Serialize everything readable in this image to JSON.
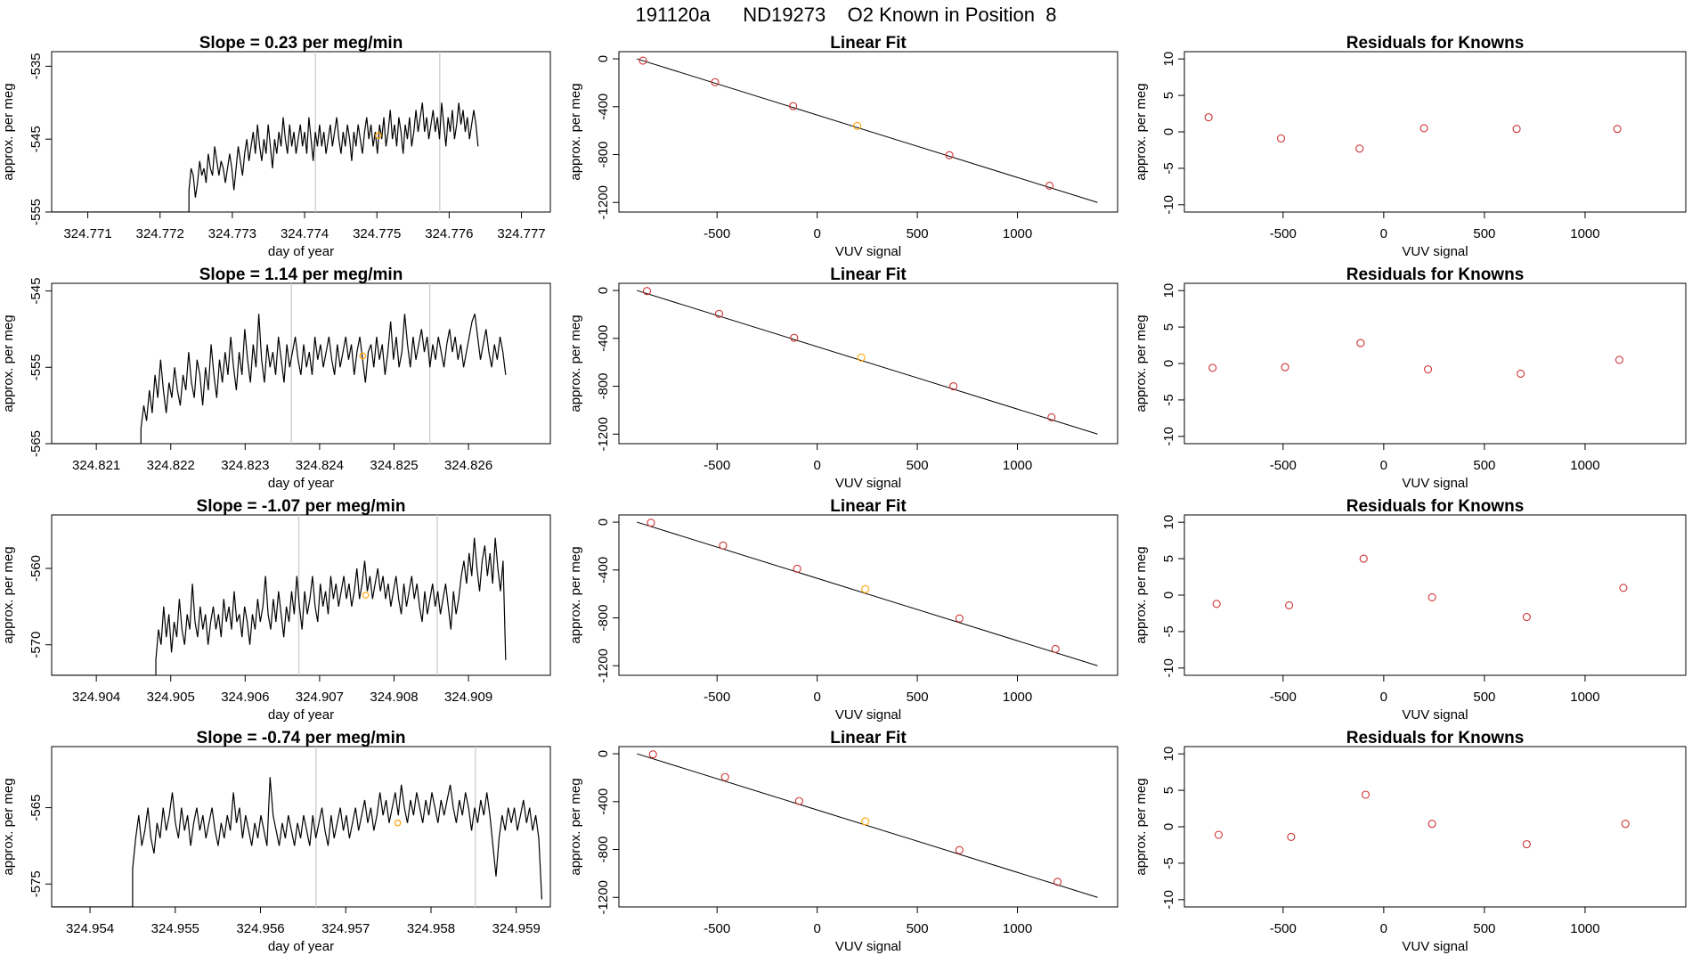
{
  "page_title": "191120a      ND19273    O2 Known in Position  8",
  "colors": {
    "trace": "#000000",
    "fit_point": "#cd3333",
    "reference_point": "#ffa500",
    "marker_line": "#cccccc",
    "fit_line": "#000000"
  },
  "chart_data": [
    {
      "type": "line",
      "title": "Slope =  0.23  per meg/min",
      "xlabel": "day of year",
      "ylabel": "approx. per meg",
      "xlim": [
        324.7705,
        324.7774
      ],
      "ylim": [
        -555,
        -533
      ],
      "xticks": [
        "324.771",
        "324.772",
        "324.773",
        "324.774",
        "324.775",
        "324.776",
        "324.777"
      ],
      "xtick_values": [
        324.771,
        324.772,
        324.773,
        324.774,
        324.775,
        324.776,
        324.777
      ],
      "yticks": [
        "-555",
        "-545",
        "-535"
      ],
      "ytick_values": [
        -555,
        -545,
        -535
      ],
      "x_start": 324.7724,
      "x_end": 324.7764,
      "baseline": -555,
      "vlines": [
        324.77415,
        324.77587
      ],
      "highlight_point": {
        "x": 324.77502,
        "y": -544.5
      },
      "trace": [
        -552,
        -549,
        -550,
        -553,
        -551,
        -548,
        -550,
        -549,
        -551,
        -547,
        -549,
        -550,
        -546,
        -548,
        -550,
        -548,
        -549,
        -551,
        -549,
        -547,
        -549,
        -552,
        -549,
        -546,
        -548,
        -550,
        -547,
        -545,
        -548,
        -546,
        -544,
        -547,
        -543,
        -546,
        -548,
        -545,
        -547,
        -543,
        -546,
        -549,
        -545,
        -547,
        -544,
        -546,
        -542,
        -545,
        -547,
        -543,
        -546,
        -544,
        -547,
        -545,
        -543,
        -546,
        -544,
        -547,
        -542,
        -545,
        -548,
        -544,
        -546,
        -543,
        -546,
        -544,
        -547,
        -545,
        -543,
        -546,
        -544,
        -542,
        -545,
        -547,
        -544,
        -546,
        -543,
        -545,
        -548,
        -544,
        -546,
        -543,
        -545,
        -547,
        -544,
        -542,
        -545,
        -543,
        -546,
        -544,
        -547,
        -543,
        -545,
        -542,
        -546,
        -544,
        -541,
        -545,
        -543,
        -546,
        -542,
        -544,
        -547,
        -543,
        -545,
        -542,
        -546,
        -544,
        -541,
        -544,
        -542,
        -540,
        -544,
        -542,
        -545,
        -543,
        -541,
        -544,
        -542,
        -545,
        -540,
        -543,
        -546,
        -542,
        -544,
        -541,
        -545,
        -543,
        -540,
        -543,
        -541,
        -544,
        -542,
        -545,
        -543,
        -541,
        -543,
        -546
      ]
    },
    {
      "type": "scatter",
      "title": "Linear Fit",
      "xlabel": "VUV signal",
      "ylabel": "approx. per meg",
      "xlim": [
        -990,
        1500
      ],
      "ylim": [
        -1280,
        60
      ],
      "xticks": [
        "-500",
        "0",
        "500",
        "1000"
      ],
      "xtick_values": [
        -500,
        0,
        500,
        1000
      ],
      "yticks": [
        "0",
        "-400",
        "-800",
        "-1200"
      ],
      "ytick_values": [
        0,
        -400,
        -800,
        -1200
      ],
      "points": [
        {
          "x": -870,
          "y": -15
        },
        {
          "x": -510,
          "y": -195
        },
        {
          "x": -120,
          "y": -395
        },
        {
          "x": 200,
          "y": -560
        },
        {
          "x": 660,
          "y": -805
        },
        {
          "x": 1160,
          "y": -1060
        }
      ],
      "reference_index": 3,
      "fit_line": {
        "x": [
          -900,
          1400
        ],
        "y": [
          0,
          -1200
        ]
      }
    },
    {
      "type": "scatter",
      "title": "Residuals for Knowns",
      "xlabel": "VUV signal",
      "ylabel": "approx. per meg",
      "xlim": [
        -990,
        1500
      ],
      "ylim": [
        -11,
        11
      ],
      "xticks": [
        "-500",
        "0",
        "500",
        "1000"
      ],
      "xtick_values": [
        -500,
        0,
        500,
        1000
      ],
      "yticks": [
        "10",
        "5",
        "0",
        "-5",
        "-10"
      ],
      "ytick_values": [
        10,
        5,
        0,
        -5,
        -10
      ],
      "points": [
        {
          "x": -870,
          "y": 2.0
        },
        {
          "x": -510,
          "y": -0.9
        },
        {
          "x": -120,
          "y": -2.3
        },
        {
          "x": 200,
          "y": 0.5
        },
        {
          "x": 660,
          "y": 0.4
        },
        {
          "x": 1160,
          "y": 0.4
        }
      ]
    },
    {
      "type": "line",
      "title": "Slope =  1.14  per meg/min",
      "xlabel": "day of year",
      "ylabel": "approx. per meg",
      "xlim": [
        324.8204,
        324.8271
      ],
      "ylim": [
        -565,
        -544
      ],
      "xticks": [
        "324.821",
        "324.822",
        "324.823",
        "324.824",
        "324.825",
        "324.826"
      ],
      "xtick_values": [
        324.821,
        324.822,
        324.823,
        324.824,
        324.825,
        324.826
      ],
      "yticks": [
        "-565",
        "-555",
        "-545"
      ],
      "ytick_values": [
        -565,
        -555,
        -545
      ],
      "x_start": 324.8216,
      "x_end": 324.8265,
      "baseline": -565,
      "vlines": [
        324.82362,
        324.82548
      ],
      "highlight_point": {
        "x": 324.82458,
        "y": -553.5
      },
      "trace": [
        -563,
        -560,
        -562,
        -558,
        -561,
        -556,
        -559,
        -554,
        -558,
        -561,
        -557,
        -559,
        -555,
        -558,
        -560,
        -556,
        -558,
        -553,
        -557,
        -559,
        -554,
        -556,
        -560,
        -555,
        -558,
        -552,
        -556,
        -559,
        -554,
        -557,
        -553,
        -556,
        -551,
        -555,
        -558,
        -553,
        -556,
        -550,
        -554,
        -557,
        -552,
        -555,
        -548,
        -554,
        -557,
        -552,
        -555,
        -553,
        -556,
        -551,
        -554,
        -557,
        -552,
        -555,
        -553,
        -551,
        -554,
        -556,
        -552,
        -555,
        -553,
        -556,
        -551,
        -554,
        -552,
        -555,
        -553,
        -551,
        -554,
        -556,
        -552,
        -555,
        -553,
        -551,
        -554,
        -552,
        -556,
        -553,
        -551,
        -554,
        -557,
        -553,
        -552,
        -555,
        -551,
        -554,
        -552,
        -556,
        -553,
        -549,
        -554,
        -551,
        -555,
        -553,
        -548,
        -552,
        -555,
        -551,
        -554,
        -552,
        -550,
        -553,
        -551,
        -555,
        -552,
        -554,
        -551,
        -553,
        -555,
        -552,
        -550,
        -553,
        -551,
        -554,
        -552,
        -555,
        -553,
        -551,
        -549,
        -548,
        -551,
        -554,
        -552,
        -550,
        -553,
        -555,
        -552,
        -554,
        -551,
        -553,
        -556
      ]
    },
    {
      "type": "scatter",
      "title": "Linear Fit",
      "xlabel": "VUV signal",
      "ylabel": "approx. per meg",
      "xlim": [
        -990,
        1500
      ],
      "ylim": [
        -1280,
        60
      ],
      "xticks": [
        "-500",
        "0",
        "500",
        "1000"
      ],
      "xtick_values": [
        -500,
        0,
        500,
        1000
      ],
      "yticks": [
        "0",
        "-400",
        "-800",
        "-1200"
      ],
      "ytick_values": [
        0,
        -400,
        -800,
        -1200
      ],
      "points": [
        {
          "x": -850,
          "y": -5
        },
        {
          "x": -490,
          "y": -195
        },
        {
          "x": -115,
          "y": -395
        },
        {
          "x": 220,
          "y": -560
        },
        {
          "x": 680,
          "y": -800
        },
        {
          "x": 1170,
          "y": -1060
        }
      ],
      "reference_index": 3,
      "fit_line": {
        "x": [
          -900,
          1400
        ],
        "y": [
          0,
          -1200
        ]
      }
    },
    {
      "type": "scatter",
      "title": "Residuals for Knowns",
      "xlabel": "VUV signal",
      "ylabel": "approx. per meg",
      "xlim": [
        -990,
        1500
      ],
      "ylim": [
        -11,
        11
      ],
      "xticks": [
        "-500",
        "0",
        "500",
        "1000"
      ],
      "xtick_values": [
        -500,
        0,
        500,
        1000
      ],
      "yticks": [
        "10",
        "5",
        "0",
        "-5",
        "-10"
      ],
      "ytick_values": [
        10,
        5,
        0,
        -5,
        -10
      ],
      "points": [
        {
          "x": -850,
          "y": -0.6
        },
        {
          "x": -490,
          "y": -0.5
        },
        {
          "x": -115,
          "y": 2.8
        },
        {
          "x": 220,
          "y": -0.8
        },
        {
          "x": 680,
          "y": -1.4
        },
        {
          "x": 1170,
          "y": 0.5
        }
      ]
    },
    {
      "type": "line",
      "title": "Slope =  -1.07  per meg/min",
      "xlabel": "day of year",
      "ylabel": "approx. per meg",
      "xlim": [
        324.9034,
        324.9101
      ],
      "ylim": [
        -574,
        -553
      ],
      "xticks": [
        "324.904",
        "324.905",
        "324.906",
        "324.907",
        "324.908",
        "324.909"
      ],
      "xtick_values": [
        324.904,
        324.905,
        324.906,
        324.907,
        324.908,
        324.909
      ],
      "yticks": [
        "-570",
        "-560"
      ],
      "ytick_values": [
        -570,
        -560
      ],
      "x_start": 324.9048,
      "x_end": 324.9095,
      "baseline": -574,
      "vlines": [
        324.90672,
        324.90858
      ],
      "highlight_point": {
        "x": 324.90762,
        "y": -563.5
      },
      "trace": [
        -572,
        -568,
        -570,
        -565,
        -569,
        -566,
        -571,
        -567,
        -569,
        -564,
        -568,
        -570,
        -566,
        -568,
        -562,
        -567,
        -569,
        -565,
        -568,
        -566,
        -570,
        -567,
        -565,
        -568,
        -566,
        -569,
        -564,
        -567,
        -565,
        -568,
        -563,
        -567,
        -566,
        -569,
        -565,
        -567,
        -570,
        -566,
        -568,
        -564,
        -567,
        -565,
        -561,
        -566,
        -568,
        -564,
        -567,
        -563,
        -566,
        -569,
        -565,
        -567,
        -563,
        -566,
        -561,
        -565,
        -568,
        -563,
        -566,
        -564,
        -561,
        -565,
        -567,
        -562,
        -565,
        -563,
        -566,
        -561,
        -564,
        -562,
        -565,
        -563,
        -561,
        -564,
        -562,
        -565,
        -563,
        -560,
        -564,
        -562,
        -559,
        -563,
        -561,
        -564,
        -562,
        -560,
        -563,
        -561,
        -564,
        -562,
        -565,
        -563,
        -561,
        -564,
        -566,
        -562,
        -565,
        -563,
        -561,
        -564,
        -562,
        -565,
        -567,
        -563,
        -566,
        -564,
        -562,
        -565,
        -563,
        -566,
        -564,
        -562,
        -565,
        -568,
        -563,
        -566,
        -564,
        -561,
        -559,
        -562,
        -558,
        -561,
        -556,
        -560,
        -563,
        -559,
        -557,
        -561,
        -558,
        -562,
        -556,
        -560,
        -563,
        -559,
        -572
      ]
    },
    {
      "type": "scatter",
      "title": "Linear Fit",
      "xlabel": "VUV signal",
      "ylabel": "approx. per meg",
      "xlim": [
        -990,
        1500
      ],
      "ylim": [
        -1280,
        60
      ],
      "xticks": [
        "-500",
        "0",
        "500",
        "1000"
      ],
      "xtick_values": [
        -500,
        0,
        500,
        1000
      ],
      "yticks": [
        "0",
        "-400",
        "-800",
        "-1200"
      ],
      "ytick_values": [
        0,
        -400,
        -800,
        -1200
      ],
      "points": [
        {
          "x": -830,
          "y": -5
        },
        {
          "x": -470,
          "y": -195
        },
        {
          "x": -100,
          "y": -390
        },
        {
          "x": 240,
          "y": -560
        },
        {
          "x": 710,
          "y": -805
        },
        {
          "x": 1190,
          "y": -1060
        }
      ],
      "reference_index": 3,
      "fit_line": {
        "x": [
          -900,
          1400
        ],
        "y": [
          0,
          -1200
        ]
      }
    },
    {
      "type": "scatter",
      "title": "Residuals for Knowns",
      "xlabel": "VUV signal",
      "ylabel": "approx. per meg",
      "xlim": [
        -990,
        1500
      ],
      "ylim": [
        -11,
        11
      ],
      "xticks": [
        "-500",
        "0",
        "500",
        "1000"
      ],
      "xtick_values": [
        -500,
        0,
        500,
        1000
      ],
      "yticks": [
        "10",
        "5",
        "0",
        "-5",
        "-10"
      ],
      "ytick_values": [
        10,
        5,
        0,
        -5,
        -10
      ],
      "points": [
        {
          "x": -830,
          "y": -1.2
        },
        {
          "x": -470,
          "y": -1.4
        },
        {
          "x": -100,
          "y": 5.0
        },
        {
          "x": 240,
          "y": -0.3
        },
        {
          "x": 710,
          "y": -3.0
        },
        {
          "x": 1190,
          "y": 1.0
        }
      ]
    },
    {
      "type": "line",
      "title": "Slope =  -0.74  per meg/min",
      "xlabel": "day of year",
      "ylabel": "approx. per meg",
      "xlim": [
        324.95355,
        324.9594
      ],
      "ylim": [
        -578,
        -557
      ],
      "xticks": [
        "324.954",
        "324.955",
        "324.956",
        "324.957",
        "324.958",
        "324.959"
      ],
      "xtick_values": [
        324.954,
        324.955,
        324.956,
        324.957,
        324.958,
        324.959
      ],
      "yticks": [
        "-575",
        "-565"
      ],
      "ytick_values": [
        -575,
        -565
      ],
      "x_start": 324.9545,
      "x_end": 324.9593,
      "baseline": -578,
      "vlines": [
        324.95665,
        324.95852
      ],
      "highlight_point": {
        "x": 324.95761,
        "y": -567
      },
      "trace": [
        -573,
        -569,
        -566,
        -570,
        -568,
        -565,
        -569,
        -571,
        -567,
        -569,
        -565,
        -568,
        -566,
        -563,
        -567,
        -569,
        -565,
        -568,
        -566,
        -570,
        -567,
        -565,
        -568,
        -566,
        -569,
        -567,
        -565,
        -568,
        -570,
        -567,
        -569,
        -566,
        -568,
        -563,
        -567,
        -565,
        -569,
        -566,
        -568,
        -570,
        -567,
        -569,
        -566,
        -568,
        -570,
        -561,
        -566,
        -568,
        -570,
        -567,
        -569,
        -566,
        -568,
        -570,
        -567,
        -569,
        -566,
        -568,
        -570,
        -566,
        -569,
        -567,
        -565,
        -568,
        -570,
        -566,
        -569,
        -567,
        -565,
        -568,
        -566,
        -569,
        -567,
        -565,
        -568,
        -566,
        -564,
        -567,
        -565,
        -568,
        -566,
        -563,
        -566,
        -564,
        -567,
        -565,
        -563,
        -566,
        -562,
        -565,
        -567,
        -564,
        -566,
        -563,
        -565,
        -567,
        -564,
        -566,
        -563,
        -565,
        -567,
        -564,
        -566,
        -564,
        -562,
        -565,
        -567,
        -564,
        -566,
        -563,
        -565,
        -568,
        -565,
        -567,
        -564,
        -566,
        -563,
        -566,
        -570,
        -574,
        -569,
        -566,
        -568,
        -565,
        -567,
        -565,
        -568,
        -566,
        -564,
        -567,
        -565,
        -568,
        -566,
        -569,
        -577
      ]
    },
    {
      "type": "scatter",
      "title": "Linear Fit",
      "xlabel": "VUV signal",
      "ylabel": "approx. per meg",
      "xlim": [
        -990,
        1500
      ],
      "ylim": [
        -1280,
        60
      ],
      "xticks": [
        "-500",
        "0",
        "500",
        "1000"
      ],
      "xtick_values": [
        -500,
        0,
        500,
        1000
      ],
      "yticks": [
        "0",
        "-400",
        "-800",
        "-1200"
      ],
      "ytick_values": [
        0,
        -400,
        -800,
        -1200
      ],
      "points": [
        {
          "x": -820,
          "y": -5
        },
        {
          "x": -460,
          "y": -195
        },
        {
          "x": -90,
          "y": -395
        },
        {
          "x": 240,
          "y": -565
        },
        {
          "x": 710,
          "y": -805
        },
        {
          "x": 1200,
          "y": -1070
        }
      ],
      "reference_index": 3,
      "fit_line": {
        "x": [
          -900,
          1400
        ],
        "y": [
          0,
          -1200
        ]
      }
    },
    {
      "type": "scatter",
      "title": "Residuals for Knowns",
      "xlabel": "VUV signal",
      "ylabel": "approx. per meg",
      "xlim": [
        -990,
        1500
      ],
      "ylim": [
        -11,
        11
      ],
      "xticks": [
        "-500",
        "0",
        "500",
        "1000"
      ],
      "xtick_values": [
        -500,
        0,
        500,
        1000
      ],
      "yticks": [
        "10",
        "5",
        "0",
        "-5",
        "-10"
      ],
      "ytick_values": [
        10,
        5,
        0,
        -5,
        -10
      ],
      "points": [
        {
          "x": -820,
          "y": -1.1
        },
        {
          "x": -460,
          "y": -1.4
        },
        {
          "x": -90,
          "y": 4.4
        },
        {
          "x": 240,
          "y": 0.4
        },
        {
          "x": 710,
          "y": -2.4
        },
        {
          "x": 1200,
          "y": 0.4
        }
      ]
    }
  ]
}
